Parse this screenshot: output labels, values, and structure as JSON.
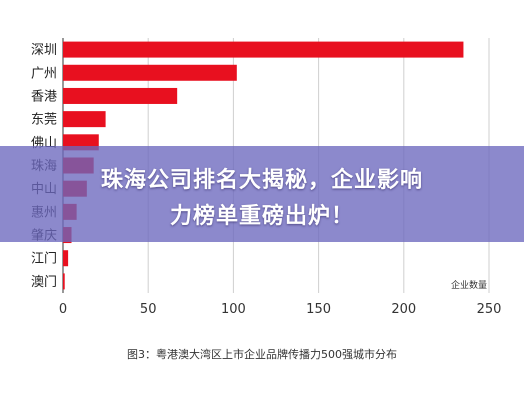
{
  "chart_data": {
    "type": "bar",
    "orientation": "horizontal",
    "categories": [
      "深圳",
      "广州",
      "香港",
      "东莞",
      "佛山",
      "珠海",
      "中山",
      "惠州",
      "肇庆",
      "江门",
      "澳门"
    ],
    "values": [
      235,
      102,
      67,
      25,
      21,
      18,
      14,
      8,
      5,
      3,
      1
    ],
    "xlim": [
      0,
      250
    ],
    "xticks": [
      "0",
      "50",
      "100",
      "150",
      "200",
      "250"
    ],
    "xlabel": "企业数量",
    "caption": "图3：粤港澳大湾区上市企业品牌传播力500强城市分布",
    "grid": true,
    "bar_color": "#e8101f"
  },
  "overlay": {
    "line1": "珠海公司排名大揭秘，企业影响",
    "line2": "力榜单重磅出炉！",
    "color": "#6b68be"
  }
}
